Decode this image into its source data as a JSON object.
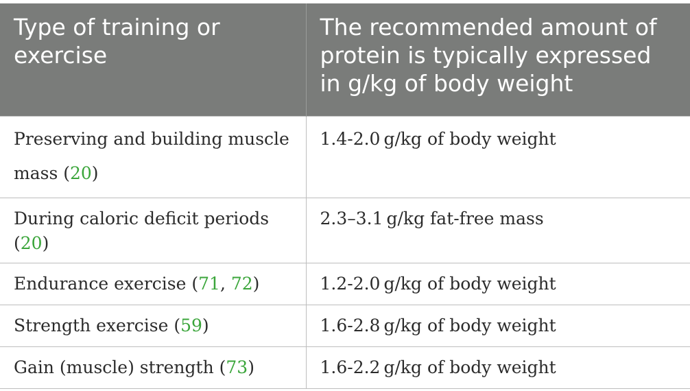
{
  "table": {
    "headers": [
      "Type of training or exercise",
      "The recommended amount of protein is typically expressed in g/kg of body weight"
    ],
    "rows": [
      {
        "type_parts": [
          "Preserving and building muscle mass (",
          "20",
          ")"
        ],
        "amount": "1.4-2.0 g/kg of body weight"
      },
      {
        "type_parts": [
          "During caloric deficit periods (",
          "20",
          ")"
        ],
        "amount": "2.3–3.1 g/kg fat-free mass"
      },
      {
        "type_parts": [
          "Endurance exercise (",
          "71",
          ", ",
          "72",
          ")"
        ],
        "amount": "1.2-2.0 g/kg of body weight"
      },
      {
        "type_parts": [
          "Strength exercise (",
          "59",
          ")"
        ],
        "amount": "1.6-2.8 g/kg of body weight"
      },
      {
        "type_parts": [
          "Gain (muscle) strength (",
          "73",
          ")"
        ],
        "amount": "1.6-2.2 g/kg of body weight"
      }
    ]
  },
  "colors": {
    "header_background": "#7a7c7a",
    "header_text": "#ffffff",
    "reference_link": "#3aa53a"
  }
}
